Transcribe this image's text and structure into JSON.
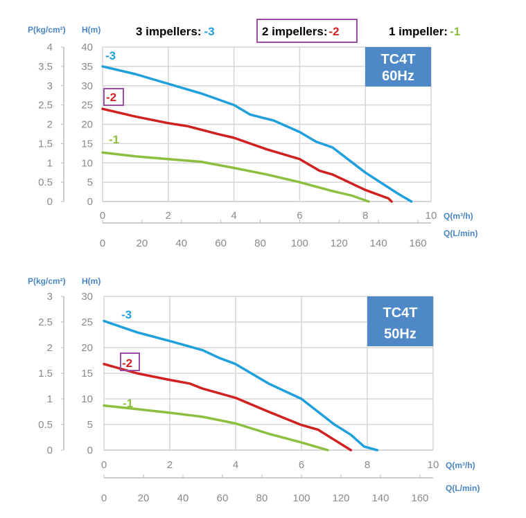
{
  "header": {
    "items": [
      {
        "label": "3 impellers:",
        "code": "-3",
        "color": "#1fa0dc"
      },
      {
        "label": "2 impellers:",
        "code": "-2",
        "color": "#d0201f"
      },
      {
        "label": "1 impeller:",
        "code": "-1",
        "color": "#8cbf3f"
      }
    ],
    "highlight_color": "#9b4ea3"
  },
  "chart_data": [
    {
      "type": "line",
      "badge": [
        "TC4T",
        "60Hz"
      ],
      "ylabel_left": "P(kg/cm²)",
      "ylabel": "H(m)",
      "xlabel": "Q(m³/h)",
      "xlabel2": "Q(L/min)",
      "xlim": [
        0,
        10
      ],
      "ylim": [
        0,
        40
      ],
      "plim": [
        0,
        4
      ],
      "xticks": [
        "0",
        "2",
        "4",
        "6",
        "8",
        "10"
      ],
      "yticks": [
        "0",
        "5",
        "10",
        "15",
        "20",
        "25",
        "30",
        "35",
        "40"
      ],
      "pticks": [
        "0",
        "0.5",
        "1",
        "1.5",
        "2",
        "2.5",
        "3",
        "3.5",
        "4"
      ],
      "x2ticks": [
        "0",
        "20",
        "40",
        "60",
        "80",
        "100",
        "120",
        "140",
        "160"
      ],
      "grid": true,
      "series": [
        {
          "name": "-3",
          "color": "#1fa0dc",
          "boxed": false,
          "x": [
            0,
            1,
            2,
            3,
            4,
            4.5,
            5.2,
            6,
            6.5,
            7,
            8,
            9,
            9.4
          ],
          "y": [
            35,
            33,
            30.5,
            28,
            25,
            22.5,
            21,
            18,
            15.5,
            14,
            7.5,
            2,
            0
          ]
        },
        {
          "name": "-2",
          "color": "#d0201f",
          "boxed": true,
          "x": [
            0,
            1,
            2,
            2.6,
            3.5,
            4,
            5,
            6,
            6.6,
            7,
            8,
            8.7,
            8.8
          ],
          "y": [
            24,
            22,
            20.3,
            19.5,
            17.5,
            16.5,
            13.5,
            11,
            8,
            7,
            3,
            0.8,
            0
          ]
        },
        {
          "name": "-1",
          "color": "#8cbf3f",
          "boxed": false,
          "x": [
            0,
            1,
            2,
            3,
            4,
            5,
            6,
            7,
            7.6,
            8.1
          ],
          "y": [
            12.7,
            11.7,
            11,
            10.3,
            8.7,
            7,
            5,
            2.7,
            1.5,
            0
          ]
        }
      ]
    },
    {
      "type": "line",
      "badge": [
        "TC4T",
        "50Hz"
      ],
      "ylabel_left": "P(kg/cm²)",
      "ylabel": "H(m)",
      "xlabel": "Q(m³/h)",
      "xlabel2": "Q(L/min)",
      "xlim": [
        0,
        10
      ],
      "ylim": [
        0,
        30
      ],
      "plim": [
        0,
        3
      ],
      "xticks": [
        "0",
        "2",
        "4",
        "6",
        "8",
        "10"
      ],
      "yticks": [
        "0",
        "5",
        "10",
        "15",
        "20",
        "25",
        "30"
      ],
      "pticks": [
        "0",
        "0.5",
        "1",
        "1.5",
        "2",
        "2.5",
        "3"
      ],
      "x2ticks": [
        "0",
        "20",
        "40",
        "60",
        "80",
        "100",
        "120",
        "140",
        "160"
      ],
      "grid": true,
      "series": [
        {
          "name": "-3",
          "color": "#1fa0dc",
          "boxed": false,
          "x": [
            0,
            1,
            2,
            3,
            3.5,
            4,
            5,
            6,
            7,
            7.5,
            7.9,
            8.3
          ],
          "y": [
            25.2,
            23,
            21.3,
            19.5,
            18,
            16.8,
            13,
            10,
            5,
            3,
            0.7,
            0
          ]
        },
        {
          "name": "-2",
          "color": "#d0201f",
          "boxed": true,
          "x": [
            0,
            1,
            2,
            2.6,
            3,
            4,
            5,
            6,
            6.5,
            7,
            7.5
          ],
          "y": [
            16.8,
            15,
            13.7,
            13,
            12,
            10.2,
            7.5,
            4.9,
            4,
            2,
            0
          ]
        },
        {
          "name": "-1",
          "color": "#8cbf3f",
          "boxed": false,
          "x": [
            0,
            1,
            2,
            3,
            4,
            5,
            6,
            6.8
          ],
          "y": [
            8.7,
            8,
            7.3,
            6.5,
            5.2,
            3.2,
            1.5,
            0
          ]
        }
      ]
    }
  ]
}
